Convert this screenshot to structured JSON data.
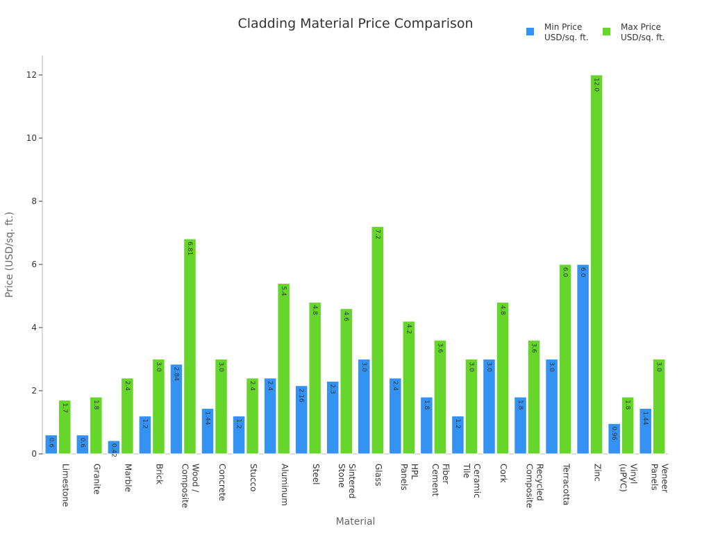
{
  "chart_data": {
    "type": "bar",
    "title": "Cladding Material Price Comparison",
    "xlabel": "Material",
    "ylabel": "Price (USD/sq. ft.)",
    "ylim": [
      0,
      12.6
    ],
    "yticks": [
      "0",
      "2",
      "4",
      "6",
      "8",
      "10",
      "12"
    ],
    "grid": false,
    "legend_position": "top-right",
    "categories": [
      [
        "Limestone"
      ],
      [
        "Granite"
      ],
      [
        "Marble"
      ],
      [
        "Brick"
      ],
      [
        "Wood /",
        "Composite"
      ],
      [
        "Concrete"
      ],
      [
        "Stucco"
      ],
      [
        "Aluminum"
      ],
      [
        "Steel"
      ],
      [
        "Sintered",
        "Stone"
      ],
      [
        "Glass"
      ],
      [
        "HPL",
        "Panels"
      ],
      [
        "Fiber",
        "Cement"
      ],
      [
        "Ceramic",
        "Tile"
      ],
      [
        "Cork"
      ],
      [
        "Recycled",
        "Composite"
      ],
      [
        "Terracotta"
      ],
      [
        "Zinc"
      ],
      [
        "Vinyl",
        "(uPVC)"
      ],
      [
        "Veneer",
        "Panels"
      ]
    ],
    "series": [
      {
        "name": [
          "Min Price",
          "USD/sq. ft."
        ],
        "color": "#3392f2",
        "values": [
          0.6,
          0.6,
          0.42,
          1.2,
          2.84,
          1.44,
          1.2,
          2.4,
          2.16,
          2.3,
          3.0,
          2.4,
          1.8,
          1.2,
          3.0,
          1.8,
          3.0,
          6.0,
          0.96,
          1.44
        ],
        "labels": [
          "0.6",
          "0.6",
          "0.42",
          "1.2",
          "2.84",
          "1.44",
          "1.2",
          "2.4",
          "2.16",
          "2.3",
          "3.0",
          "2.4",
          "1.8",
          "1.2",
          "3.0",
          "1.8",
          "3.0",
          "6.0",
          "0.96",
          "1.44"
        ]
      },
      {
        "name": [
          "Max Price",
          "USD/sq. ft."
        ],
        "color": "#66d62a",
        "values": [
          1.7,
          1.8,
          2.4,
          3.0,
          6.81,
          3.0,
          2.4,
          5.4,
          4.8,
          4.6,
          7.2,
          4.2,
          3.6,
          3.0,
          4.8,
          3.6,
          6.0,
          12.0,
          1.8,
          3.0
        ],
        "labels": [
          "1.7",
          "1.8",
          "2.4",
          "3.0",
          "6.81",
          "3.0",
          "2.4",
          "5.4",
          "4.8",
          "4.6",
          "7.2",
          "4.2",
          "3.6",
          "3.0",
          "4.8",
          "3.6",
          "6.0",
          "12.0",
          "1.8",
          "3.0"
        ]
      }
    ]
  }
}
